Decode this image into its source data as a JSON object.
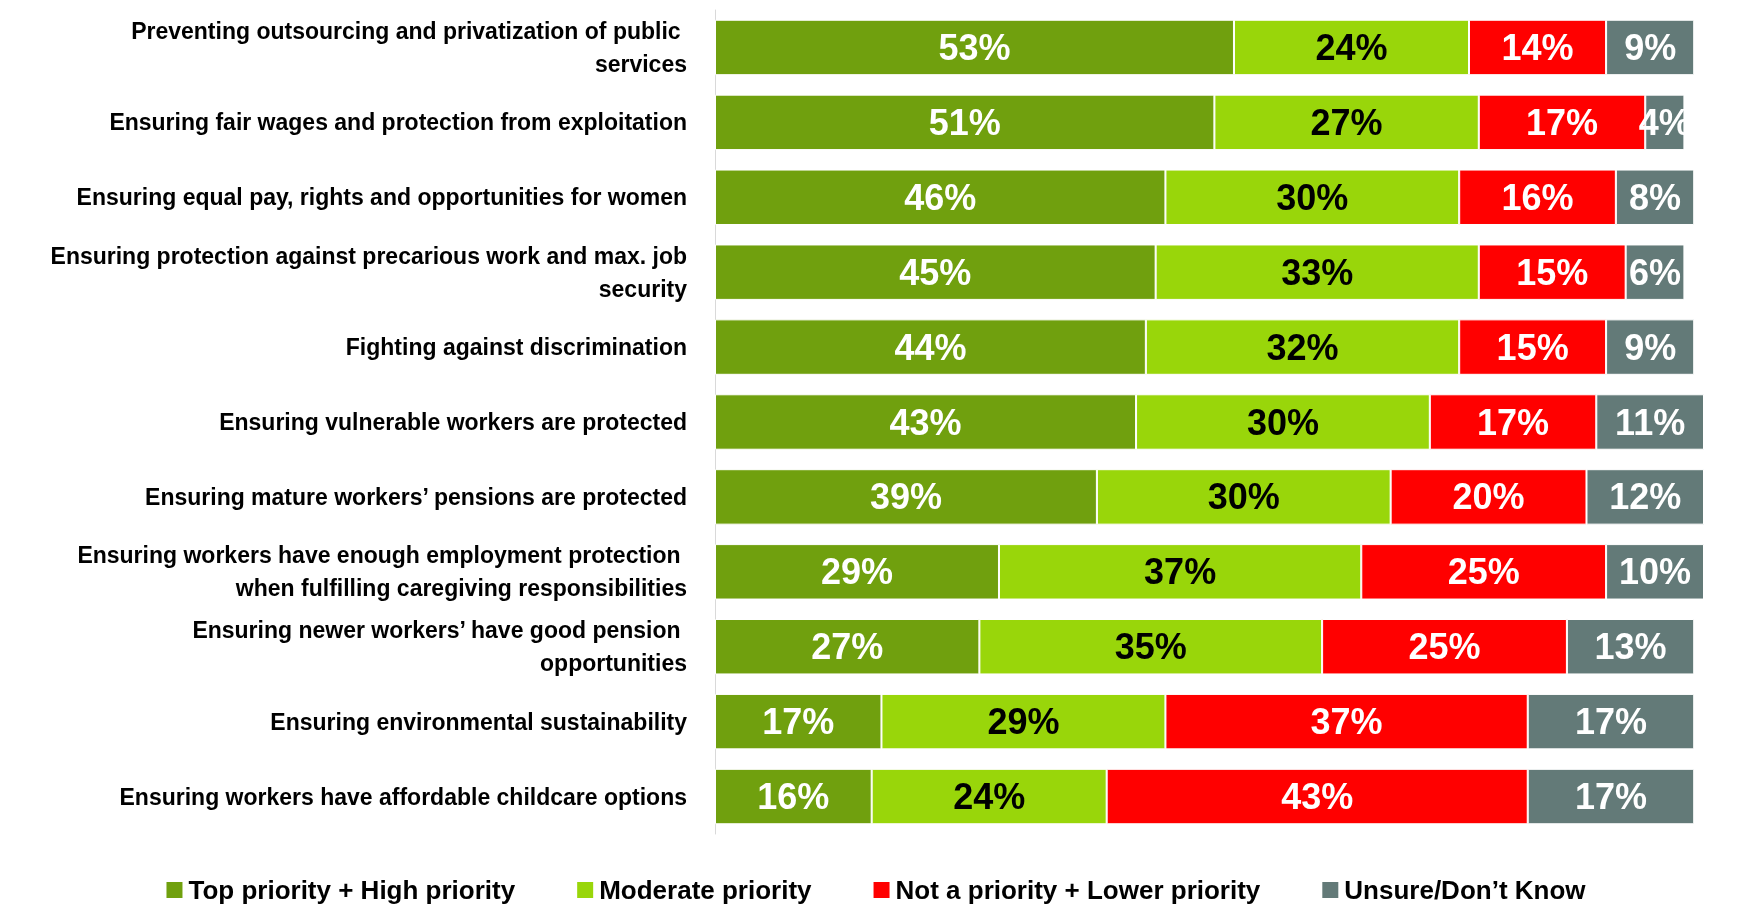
{
  "chart_data": {
    "type": "bar",
    "orientation": "horizontal",
    "stacked": true,
    "legend": "bottom",
    "categories": [
      "Preventing outsourcing and privatization of public services",
      "Ensuring fair wages and protection from exploitation",
      "Ensuring equal pay, rights and opportunities for women",
      "Ensuring protection against precarious work and max. job security",
      "Fighting against discrimination",
      "Ensuring vulnerable workers are protected",
      "Ensuring mature workers’ pensions are protected",
      "Ensuring workers have enough employment protection when fulfilling caregiving responsibilities",
      "Ensuring newer workers’ have good pension opportunities",
      "Ensuring environmental sustainability",
      "Ensuring workers have affordable childcare options"
    ],
    "series": [
      {
        "name": "Top priority + High priority",
        "color": "#70a00e",
        "values": [
          53,
          51,
          46,
          45,
          44,
          43,
          39,
          29,
          27,
          17,
          16
        ],
        "value_labels": [
          "53%",
          "51%",
          "46%",
          "45%",
          "44%",
          "43%",
          "39%",
          "29%",
          "27%",
          "17%",
          "16%"
        ]
      },
      {
        "name": "Moderate priority",
        "color": "#99d60a",
        "values": [
          24,
          27,
          30,
          33,
          32,
          30,
          30,
          37,
          35,
          29,
          24
        ],
        "value_labels": [
          "24%",
          "27%",
          "30%",
          "33%",
          "32%",
          "30%",
          "30%",
          "37%",
          "35%",
          "29%",
          "24%"
        ]
      },
      {
        "name": "Not a priority + Lower priority",
        "color": "#ff0000",
        "values": [
          14,
          17,
          16,
          15,
          15,
          17,
          20,
          25,
          25,
          37,
          43
        ],
        "value_labels": [
          "14%",
          "17%",
          "16%",
          "15%",
          "15%",
          "17%",
          "20%",
          "25%",
          "25%",
          "37%",
          "43%"
        ]
      },
      {
        "name": "Unsure/Don’t Know",
        "color": "#637a78",
        "values": [
          9,
          4,
          8,
          6,
          9,
          11,
          12,
          10,
          13,
          17,
          17
        ],
        "value_labels": [
          "9%",
          "4%",
          "8%",
          "6%",
          "9%",
          "11%",
          "12%",
          "10%",
          "13%",
          "17%",
          "17%"
        ]
      }
    ]
  }
}
